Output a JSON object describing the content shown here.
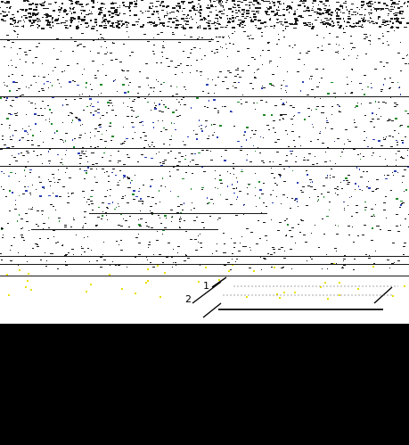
{
  "screenshot": {
    "content_region": "top",
    "content_color": "#ffffff",
    "masked_region_color": "#000000",
    "noise_colors": {
      "dark": "#1a1a1a",
      "blue": "#2a3fb4",
      "green": "#1f8a2a",
      "yellow": "#e8e000"
    }
  },
  "callouts": {
    "label_1": "1",
    "label_2": "2"
  }
}
